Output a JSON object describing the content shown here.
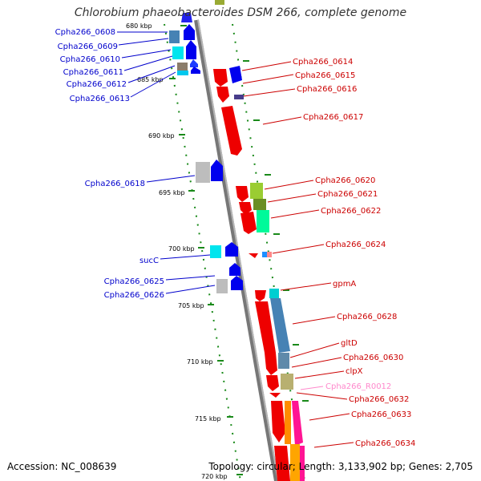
{
  "title": "Chlorobium phaeobacteroides DSM 266, complete genome",
  "footer": {
    "accession": "Accession: NC_008639",
    "summary": "Topology: circular; Length: 3,133,902 bp; Genes: 2,705"
  },
  "colors": {
    "backbone": "#8a8a8a",
    "tick": "#1a8a1a",
    "left_label": "#0000cc",
    "right_label": "#cc0000",
    "rna_label": "#ff88cc"
  },
  "ticks": [
    {
      "label": "680 kbp"
    },
    {
      "label": "685 kbp"
    },
    {
      "label": "690 kbp"
    },
    {
      "label": "695 kbp"
    },
    {
      "label": "700 kbp"
    },
    {
      "label": "705 kbp"
    },
    {
      "label": "710 kbp"
    },
    {
      "label": "715 kbp"
    },
    {
      "label": "720 kbp"
    }
  ],
  "left_genes": [
    {
      "label": "Cpha266_0608"
    },
    {
      "label": "Cpha266_0609"
    },
    {
      "label": "Cpha266_0610"
    },
    {
      "label": "Cpha266_0611"
    },
    {
      "label": "Cpha266_0612"
    },
    {
      "label": "Cpha266_0613"
    },
    {
      "label": "Cpha266_0618"
    },
    {
      "label": "sucC"
    },
    {
      "label": "Cpha266_0625"
    },
    {
      "label": "Cpha266_0626"
    }
  ],
  "right_genes": [
    {
      "label": "Cpha266_0614"
    },
    {
      "label": "Cpha266_0615"
    },
    {
      "label": "Cpha266_0616"
    },
    {
      "label": "Cpha266_0617"
    },
    {
      "label": "Cpha266_0620"
    },
    {
      "label": "Cpha266_0621"
    },
    {
      "label": "Cpha266_0622"
    },
    {
      "label": "Cpha266_0624"
    },
    {
      "label": "gpmA"
    },
    {
      "label": "Cpha266_0628"
    },
    {
      "label": "gltD"
    },
    {
      "label": "Cpha266_0630"
    },
    {
      "label": "clpX"
    },
    {
      "label": "Cpha266_R0012"
    },
    {
      "label": "Cpha266_0632"
    },
    {
      "label": "Cpha266_0633"
    },
    {
      "label": "Cpha266_0634"
    }
  ]
}
